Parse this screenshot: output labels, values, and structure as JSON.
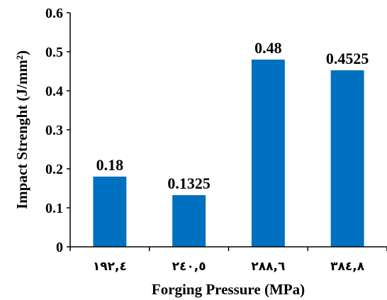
{
  "chart_data": {
    "type": "bar",
    "categories": [
      "١٩٢,٤",
      "٢٤٠,٥",
      "٢٨٨,٦",
      "٣٨٤,٨"
    ],
    "values": [
      0.18,
      0.1325,
      0.48,
      0.4525
    ],
    "data_labels": [
      "0.18",
      "0.1325",
      "0.48",
      "0.4525"
    ],
    "xlabel": "Forging Pressure (MPa)",
    "ylabel": "Impact Strenght (J/mm²)",
    "ylim": [
      0,
      0.6
    ],
    "yticks": [
      "0",
      "0.1",
      "0.2",
      "0.3",
      "0.4",
      "0.5",
      "0.6"
    ],
    "bar_color": "#0070C0",
    "grid": false,
    "legend": "none"
  }
}
